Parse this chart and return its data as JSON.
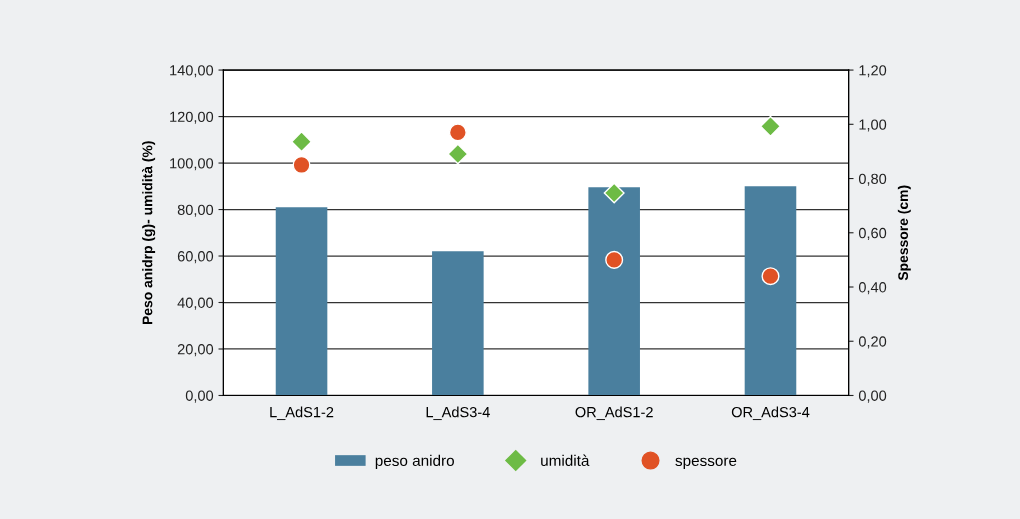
{
  "chart_data": {
    "type": "bar",
    "categories": [
      "L_AdS1-2",
      "L_AdS3-4",
      "OR_AdS1-2",
      "OR_AdS3-4"
    ],
    "series": [
      {
        "name": "peso anidro",
        "color": "#4a7f9e",
        "values": [
          81.0,
          62.0,
          89.6,
          90.0
        ]
      },
      {
        "name": "umidità",
        "type": "scatter",
        "marker": "diamond",
        "color": "#6dbb45",
        "values": [
          109.2,
          103.9,
          87.1,
          115.8
        ]
      },
      {
        "name": "spessore",
        "type": "scatter",
        "marker": "circle",
        "axis": "y2",
        "color": "#e05225",
        "values": [
          0.85,
          0.97,
          0.5,
          0.44
        ]
      }
    ],
    "ylabel": "Peso anidrp (g)- umidità (%)",
    "y2label": "Spessore (cm)",
    "ylim": [
      0,
      140
    ],
    "yticks": [
      {
        "value": 0,
        "label": "0,00"
      },
      {
        "value": 20,
        "label": "20,00"
      },
      {
        "value": 40,
        "label": "40,00"
      },
      {
        "value": 60,
        "label": "60,00"
      },
      {
        "value": 80,
        "label": "80,00"
      },
      {
        "value": 100,
        "label": "100,00"
      },
      {
        "value": 120,
        "label": "120,00"
      },
      {
        "value": 140,
        "label": "140,00"
      }
    ],
    "y2lim": [
      0,
      1.2
    ],
    "y2ticks": [
      {
        "value": 0,
        "label": "0,00"
      },
      {
        "value": 0.2,
        "label": "0,20"
      },
      {
        "value": 0.4,
        "label": "0,40"
      },
      {
        "value": 0.6,
        "label": "0,60"
      },
      {
        "value": 0.8,
        "label": "0,80"
      },
      {
        "value": 1.0,
        "label": "1,00"
      },
      {
        "value": 1.2,
        "label": "1,20"
      }
    ],
    "grid": "y",
    "legend": "bottom"
  }
}
